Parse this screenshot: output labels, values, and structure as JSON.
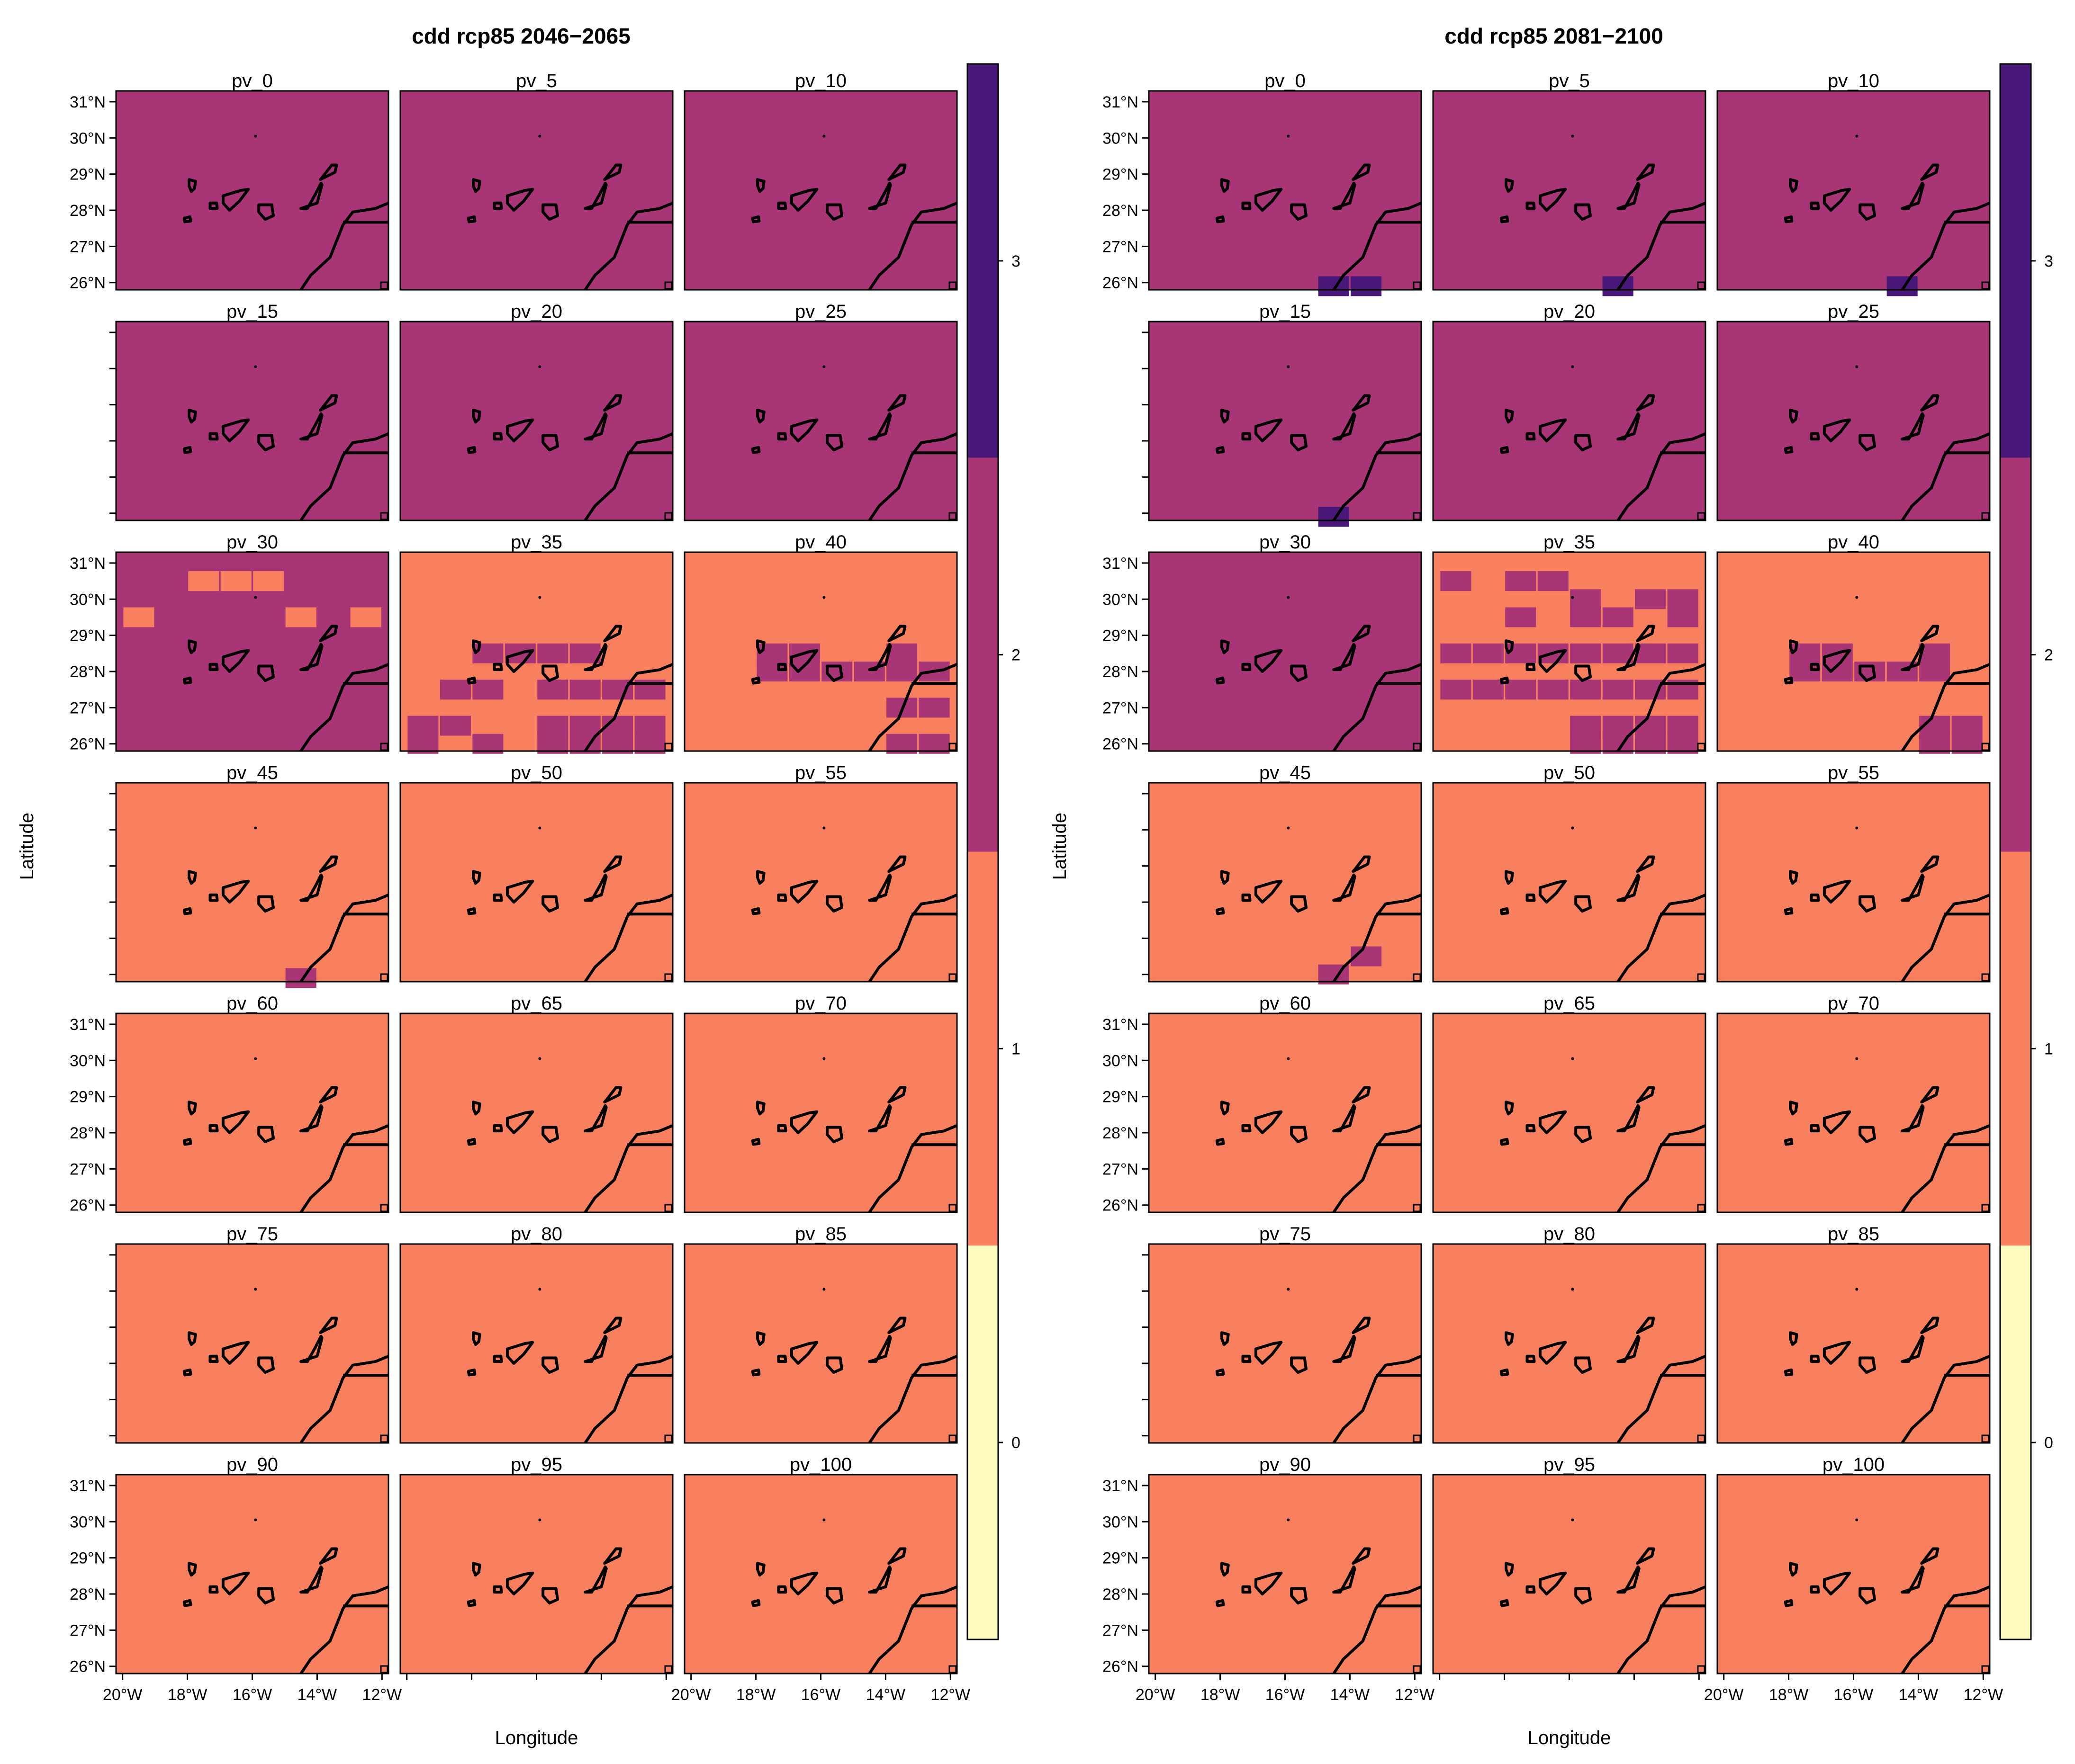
{
  "chart_data": [
    {
      "type": "heatmap",
      "title": "cdd rcp85 2046−2065",
      "xlabel": "Longitude",
      "ylabel": "Latitude",
      "x_ticks": [
        "20°W",
        "18°W",
        "16°W",
        "14°W",
        "12°W"
      ],
      "y_ticks": [
        "31°N",
        "30°N",
        "29°N",
        "28°N",
        "27°N",
        "26°N"
      ],
      "xlim": [
        -20.2,
        -11.8
      ],
      "ylim": [
        25.8,
        31.3
      ],
      "panels": [
        {
          "label": "pv_0",
          "class": 2,
          "patches": []
        },
        {
          "label": "pv_5",
          "class": 2,
          "patches": []
        },
        {
          "label": "pv_10",
          "class": 2,
          "patches": []
        },
        {
          "label": "pv_15",
          "class": 2,
          "patches": []
        },
        {
          "label": "pv_20",
          "class": 2,
          "patches": []
        },
        {
          "label": "pv_25",
          "class": 2,
          "patches": []
        },
        {
          "label": "pv_30",
          "class": 2,
          "patches": [
            [
              -17.5,
              30.5,
              1
            ],
            [
              -16.5,
              30.5,
              1
            ],
            [
              -15.5,
              30.5,
              1
            ],
            [
              -12.5,
              29.5,
              1
            ],
            [
              -14.5,
              29.5,
              1
            ],
            [
              -19.5,
              29.5,
              1
            ]
          ]
        },
        {
          "label": "pv_35",
          "class": 1,
          "patches": [
            [
              -17.5,
              28.5,
              2
            ],
            [
              -16.5,
              28.5,
              2
            ],
            [
              -15.5,
              28.5,
              2
            ],
            [
              -14.5,
              28.5,
              2
            ],
            [
              -18.5,
              27.5,
              2
            ],
            [
              -17.5,
              27.5,
              2
            ],
            [
              -15.5,
              27.5,
              2
            ],
            [
              -14.5,
              27.5,
              2
            ],
            [
              -13.5,
              27.5,
              2
            ],
            [
              -12.5,
              27.5,
              2
            ],
            [
              -19.5,
              26.5,
              2
            ],
            [
              -18.5,
              26.5,
              2
            ],
            [
              -15.5,
              26.5,
              2
            ],
            [
              -14.5,
              26.5,
              2
            ],
            [
              -13.5,
              26.5,
              2
            ],
            [
              -12.5,
              26.5,
              2
            ],
            [
              -19.5,
              26.0,
              2
            ],
            [
              -17.5,
              26.0,
              2
            ],
            [
              -15.5,
              26.0,
              2
            ],
            [
              -14.5,
              26.0,
              2
            ],
            [
              -13.5,
              26.0,
              2
            ],
            [
              -12.5,
              26.0,
              2
            ]
          ]
        },
        {
          "label": "pv_40",
          "class": 1,
          "patches": [
            [
              -17.5,
              28.5,
              2
            ],
            [
              -16.5,
              28.5,
              2
            ],
            [
              -13.5,
              28.5,
              2
            ],
            [
              -17.5,
              28.0,
              2
            ],
            [
              -16.5,
              28.0,
              2
            ],
            [
              -15.5,
              28.0,
              2
            ],
            [
              -14.5,
              28.0,
              2
            ],
            [
              -13.5,
              28.0,
              2
            ],
            [
              -12.5,
              28.0,
              2
            ],
            [
              -13.5,
              27.0,
              2
            ],
            [
              -12.5,
              27.0,
              2
            ],
            [
              -13.5,
              26.0,
              2
            ],
            [
              -12.5,
              26.0,
              2
            ]
          ]
        },
        {
          "label": "pv_45",
          "class": 1,
          "patches": [
            [
              -14.5,
              25.9,
              2
            ]
          ]
        },
        {
          "label": "pv_50",
          "class": 1,
          "patches": []
        },
        {
          "label": "pv_55",
          "class": 1,
          "patches": []
        },
        {
          "label": "pv_60",
          "class": 1,
          "patches": []
        },
        {
          "label": "pv_65",
          "class": 1,
          "patches": []
        },
        {
          "label": "pv_70",
          "class": 1,
          "patches": []
        },
        {
          "label": "pv_75",
          "class": 1,
          "patches": []
        },
        {
          "label": "pv_80",
          "class": 1,
          "patches": []
        },
        {
          "label": "pv_85",
          "class": 1,
          "patches": []
        },
        {
          "label": "pv_90",
          "class": 1,
          "patches": []
        },
        {
          "label": "pv_95",
          "class": 1,
          "patches": []
        },
        {
          "label": "pv_100",
          "class": 1,
          "patches": []
        }
      ]
    },
    {
      "type": "heatmap",
      "title": "cdd rcp85 2081−2100",
      "xlabel": "Longitude",
      "ylabel": "Latitude",
      "x_ticks": [
        "20°W",
        "18°W",
        "16°W",
        "14°W",
        "12°W"
      ],
      "y_ticks": [
        "31°N",
        "30°N",
        "29°N",
        "28°N",
        "27°N",
        "26°N"
      ],
      "xlim": [
        -20.2,
        -11.8
      ],
      "ylim": [
        25.8,
        31.3
      ],
      "panels": [
        {
          "label": "pv_0",
          "class": 2,
          "patches": [
            [
              -14.5,
              25.9,
              3
            ],
            [
              -13.5,
              25.9,
              3
            ]
          ]
        },
        {
          "label": "pv_5",
          "class": 2,
          "patches": [
            [
              -14.5,
              25.9,
              3
            ]
          ]
        },
        {
          "label": "pv_10",
          "class": 2,
          "patches": [
            [
              -14.5,
              25.9,
              3
            ]
          ]
        },
        {
          "label": "pv_15",
          "class": 2,
          "patches": [
            [
              -14.5,
              25.9,
              3
            ]
          ]
        },
        {
          "label": "pv_20",
          "class": 2,
          "patches": []
        },
        {
          "label": "pv_25",
          "class": 2,
          "patches": []
        },
        {
          "label": "pv_30",
          "class": 2,
          "patches": []
        },
        {
          "label": "pv_35",
          "class": 1,
          "patches": [
            [
              -19.5,
              30.5,
              2
            ],
            [
              -17.5,
              30.5,
              2
            ],
            [
              -16.5,
              30.5,
              2
            ],
            [
              -15.5,
              30.0,
              2
            ],
            [
              -13.5,
              30.0,
              2
            ],
            [
              -12.5,
              30.0,
              2
            ],
            [
              -17.5,
              29.5,
              2
            ],
            [
              -15.5,
              29.5,
              2
            ],
            [
              -14.5,
              29.5,
              2
            ],
            [
              -12.5,
              29.5,
              2
            ],
            [
              -19.5,
              28.5,
              2
            ],
            [
              -18.5,
              28.5,
              2
            ],
            [
              -17.5,
              28.5,
              2
            ],
            [
              -16.5,
              28.5,
              2
            ],
            [
              -15.5,
              28.5,
              2
            ],
            [
              -14.5,
              28.5,
              2
            ],
            [
              -13.5,
              28.5,
              2
            ],
            [
              -12.5,
              28.5,
              2
            ],
            [
              -19.5,
              27.5,
              2
            ],
            [
              -18.5,
              27.5,
              2
            ],
            [
              -17.5,
              27.5,
              2
            ],
            [
              -16.5,
              27.5,
              2
            ],
            [
              -15.5,
              27.5,
              2
            ],
            [
              -14.5,
              27.5,
              2
            ],
            [
              -13.5,
              27.5,
              2
            ],
            [
              -12.5,
              27.5,
              2
            ],
            [
              -15.5,
              26.5,
              2
            ],
            [
              -14.5,
              26.5,
              2
            ],
            [
              -13.5,
              26.5,
              2
            ],
            [
              -12.5,
              26.5,
              2
            ],
            [
              -15.5,
              26.0,
              2
            ],
            [
              -14.5,
              26.0,
              2
            ],
            [
              -13.5,
              26.0,
              2
            ],
            [
              -12.5,
              26.0,
              2
            ]
          ]
        },
        {
          "label": "pv_40",
          "class": 1,
          "patches": [
            [
              -17.5,
              28.5,
              2
            ],
            [
              -16.5,
              28.5,
              2
            ],
            [
              -13.5,
              28.5,
              2
            ],
            [
              -17.5,
              28.0,
              2
            ],
            [
              -16.5,
              28.0,
              2
            ],
            [
              -15.5,
              28.0,
              2
            ],
            [
              -14.5,
              28.0,
              2
            ],
            [
              -13.5,
              28.0,
              2
            ],
            [
              -13.5,
              26.5,
              2
            ],
            [
              -12.5,
              26.5,
              2
            ],
            [
              -13.5,
              26.0,
              2
            ],
            [
              -12.5,
              26.0,
              2
            ]
          ]
        },
        {
          "label": "pv_45",
          "class": 1,
          "patches": [
            [
              -14.5,
              26.0,
              2
            ],
            [
              -13.5,
              26.5,
              2
            ]
          ]
        },
        {
          "label": "pv_50",
          "class": 1,
          "patches": []
        },
        {
          "label": "pv_55",
          "class": 1,
          "patches": []
        },
        {
          "label": "pv_60",
          "class": 1,
          "patches": []
        },
        {
          "label": "pv_65",
          "class": 1,
          "patches": []
        },
        {
          "label": "pv_70",
          "class": 1,
          "patches": []
        },
        {
          "label": "pv_75",
          "class": 1,
          "patches": []
        },
        {
          "label": "pv_80",
          "class": 1,
          "patches": []
        },
        {
          "label": "pv_85",
          "class": 1,
          "patches": []
        },
        {
          "label": "pv_90",
          "class": 1,
          "patches": []
        },
        {
          "label": "pv_95",
          "class": 1,
          "patches": []
        },
        {
          "label": "pv_100",
          "class": 1,
          "patches": []
        }
      ],
      "colorbar": {
        "ticks": [
          "0",
          "1",
          "2",
          "3"
        ],
        "range": [
          -0.5,
          3.5
        ],
        "colors": [
          "#FDFBC0",
          "#F8805E",
          "#A83676",
          "#4A187A"
        ]
      }
    }
  ],
  "colorbar": {
    "ticks": [
      "0",
      "1",
      "2",
      "3"
    ],
    "range": [
      -0.5,
      3.5
    ],
    "colors": [
      "#FDFBC0",
      "#F8805E",
      "#A83676",
      "#4A187A"
    ]
  }
}
